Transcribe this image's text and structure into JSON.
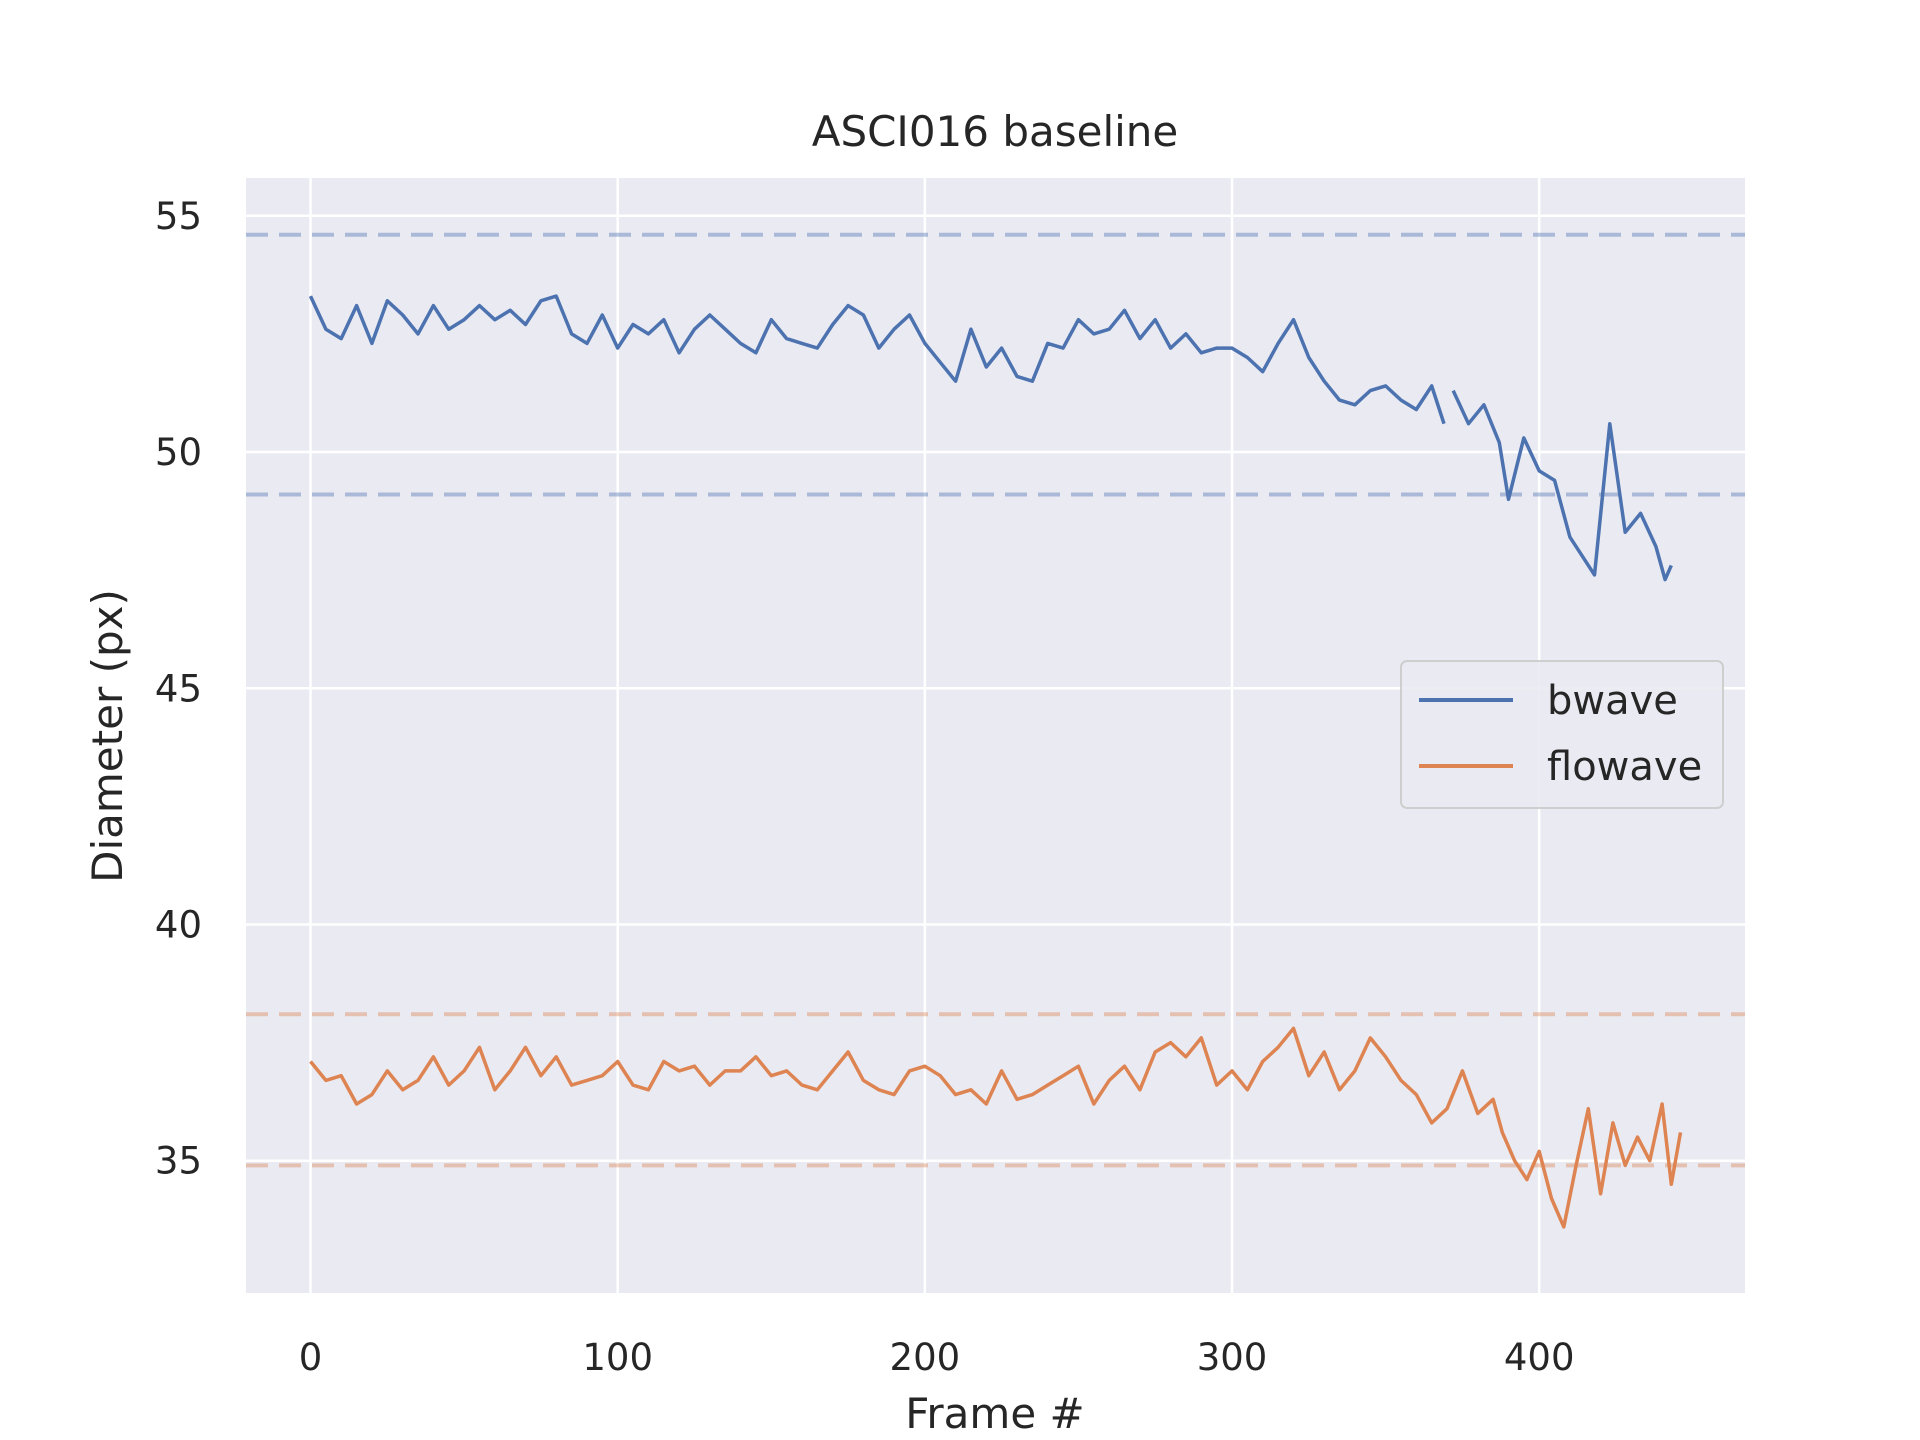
{
  "chart_data": {
    "type": "line",
    "title": "ASCI016 baseline",
    "xlabel": "Frame #",
    "ylabel": "Diameter (px)",
    "xlim": [
      -21,
      467
    ],
    "ylim": [
      32.2,
      55.8
    ],
    "xticks": [
      0,
      100,
      200,
      300,
      400
    ],
    "yticks": [
      35,
      40,
      45,
      50,
      55
    ],
    "grid": true,
    "legend_position": "center-right",
    "series": [
      {
        "name": "bwave",
        "color": "#4c72b0",
        "segments": [
          {
            "x": [
              0,
              5,
              10,
              15,
              20,
              25,
              30,
              35,
              40,
              45,
              50,
              55,
              60,
              65,
              70,
              75,
              80,
              85,
              90,
              95,
              100,
              105,
              110,
              115,
              120,
              125,
              130,
              135,
              140,
              145,
              150,
              155,
              160,
              165,
              170,
              175,
              180,
              185,
              190,
              195,
              200,
              205,
              210,
              215,
              220,
              225,
              230,
              235,
              240,
              245,
              250,
              255,
              260,
              265,
              270,
              275,
              280,
              285,
              290,
              295,
              300,
              305,
              310,
              315,
              320,
              325,
              330,
              335,
              340,
              345,
              350,
              355,
              360,
              365,
              369
            ],
            "y": [
              53.3,
              52.6,
              52.4,
              53.1,
              52.3,
              53.2,
              52.9,
              52.5,
              53.1,
              52.6,
              52.8,
              53.1,
              52.8,
              53.0,
              52.7,
              53.2,
              53.3,
              52.5,
              52.3,
              52.9,
              52.2,
              52.7,
              52.5,
              52.8,
              52.1,
              52.6,
              52.9,
              52.6,
              52.3,
              52.1,
              52.8,
              52.4,
              52.3,
              52.2,
              52.7,
              53.1,
              52.9,
              52.2,
              52.6,
              52.9,
              52.3,
              51.9,
              51.5,
              52.6,
              51.8,
              52.2,
              51.6,
              51.5,
              52.3,
              52.2,
              52.8,
              52.5,
              52.6,
              53.0,
              52.4,
              52.8,
              52.2,
              52.5,
              52.1,
              52.2,
              52.2,
              52.0,
              51.7,
              52.3,
              52.8,
              52.0,
              51.5,
              51.1,
              51.0,
              51.3,
              51.4,
              51.1,
              50.9,
              51.4,
              50.6
            ]
          },
          {
            "x": [
              372,
              377,
              382,
              387,
              390,
              395,
              400,
              405,
              410,
              413,
              418,
              423,
              428,
              433,
              438,
              441,
              443
            ],
            "y": [
              51.3,
              50.6,
              51.0,
              50.2,
              49.0,
              50.3,
              49.6,
              49.4,
              48.2,
              47.9,
              47.4,
              50.6,
              48.3,
              48.7,
              48.0,
              47.3,
              47.6
            ]
          }
        ]
      },
      {
        "name": "flowave",
        "color": "#dd8452",
        "segments": [
          {
            "x": [
              0,
              5,
              10,
              15,
              20,
              25,
              30,
              35,
              40,
              45,
              50,
              55,
              60,
              65,
              70,
              75,
              80,
              85,
              90,
              95,
              100,
              105,
              110,
              115,
              120,
              125,
              130,
              135,
              140,
              145,
              150,
              155,
              160,
              165,
              170,
              175,
              180,
              185,
              190,
              195,
              200,
              205,
              210,
              215,
              220,
              225,
              230,
              235,
              240,
              245,
              250,
              255,
              260,
              265,
              270,
              275,
              280,
              285,
              290,
              295,
              300,
              305,
              310,
              315,
              320,
              325,
              330,
              335,
              340,
              345,
              350,
              355,
              360,
              365,
              370,
              375,
              380,
              385,
              388,
              392,
              396,
              400,
              404,
              408,
              412,
              416,
              420,
              424,
              428,
              432,
              436,
              440,
              443,
              446
            ],
            "y": [
              37.1,
              36.7,
              36.8,
              36.2,
              36.4,
              36.9,
              36.5,
              36.7,
              37.2,
              36.6,
              36.9,
              37.4,
              36.5,
              36.9,
              37.4,
              36.8,
              37.2,
              36.6,
              36.7,
              36.8,
              37.1,
              36.6,
              36.5,
              37.1,
              36.9,
              37.0,
              36.6,
              36.9,
              36.9,
              37.2,
              36.8,
              36.9,
              36.6,
              36.5,
              36.9,
              37.3,
              36.7,
              36.5,
              36.4,
              36.9,
              37.0,
              36.8,
              36.4,
              36.5,
              36.2,
              36.9,
              36.3,
              36.4,
              36.6,
              36.8,
              37.0,
              36.2,
              36.7,
              37.0,
              36.5,
              37.3,
              37.5,
              37.2,
              37.6,
              36.6,
              36.9,
              36.5,
              37.1,
              37.4,
              37.8,
              36.8,
              37.3,
              36.5,
              36.9,
              37.6,
              37.2,
              36.7,
              36.4,
              35.8,
              36.1,
              36.9,
              36.0,
              36.3,
              35.6,
              35.0,
              34.6,
              35.2,
              34.2,
              33.6,
              34.9,
              36.1,
              34.3,
              35.8,
              34.9,
              35.5,
              35.0,
              36.2,
              34.5,
              35.6
            ]
          }
        ]
      }
    ],
    "reference_lines": [
      {
        "y": 54.6,
        "series": "bwave",
        "color": "#4c72b0",
        "style": "dashed"
      },
      {
        "y": 49.1,
        "series": "bwave",
        "color": "#4c72b0",
        "style": "dashed"
      },
      {
        "y": 38.1,
        "series": "flowave",
        "color": "#dd8452",
        "style": "dashed"
      },
      {
        "y": 34.9,
        "series": "flowave",
        "color": "#dd8452",
        "style": "dashed"
      }
    ]
  }
}
